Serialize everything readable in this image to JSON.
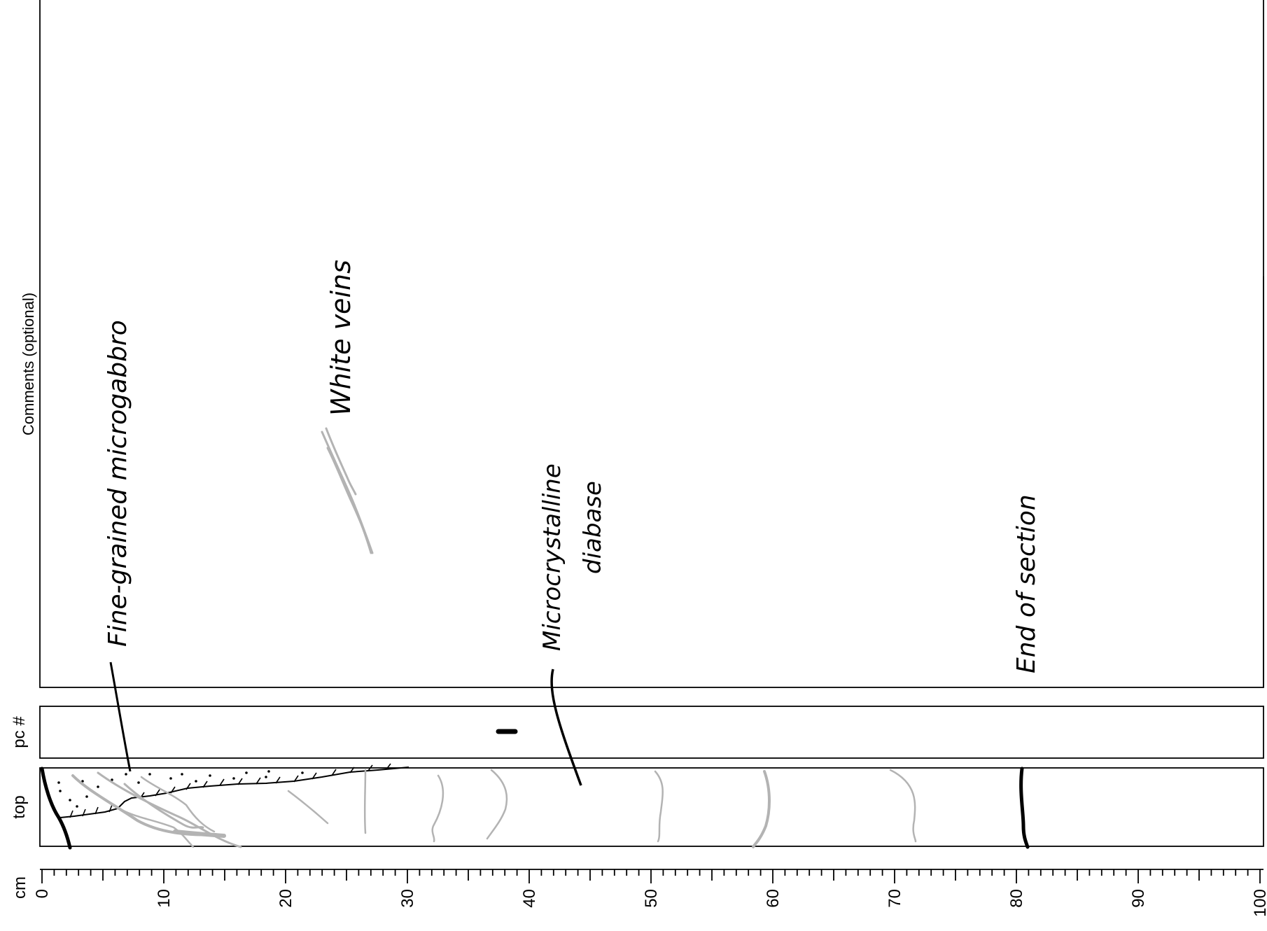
{
  "form": {
    "comments_header": "Comments (optional)",
    "pc_header": "pc #",
    "top_header": "top",
    "scale_unit": "cm",
    "scale_ticks": [
      "0",
      "10",
      "20",
      "30",
      "40",
      "50",
      "60",
      "70",
      "80",
      "90",
      "100"
    ],
    "scale_range_cm": [
      0,
      100
    ]
  },
  "annotations": {
    "note_1": "Fine-grained microgabbro",
    "note_2": "White veins",
    "note_3_line1": "Microcrystalline",
    "note_3_line2": "diabase",
    "note_4": "End of section"
  },
  "pieces": {
    "piece_mark": "1"
  },
  "colors": {
    "ink": "#000000",
    "vein_gray": "#b3b3b3",
    "background": "#ffffff"
  }
}
